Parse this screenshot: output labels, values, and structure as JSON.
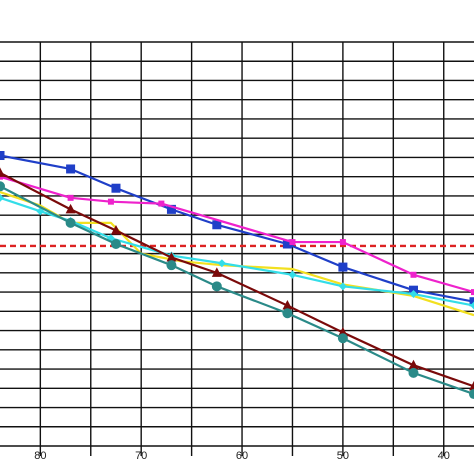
{
  "chart_data": {
    "type": "line",
    "title": "",
    "xlabel": "",
    "ylabel": "",
    "x_reversed": true,
    "xlim": [
      84,
      37
    ],
    "ylim": [
      0,
      21
    ],
    "x_ticks": [
      "80",
      "70",
      "60",
      "50",
      "40"
    ],
    "x_tick_values": [
      80,
      70,
      60,
      50,
      40
    ],
    "grid": true,
    "reference_line": {
      "y": 10.4,
      "color": "#dd2222",
      "style": "dashed"
    },
    "series": [
      {
        "color": "#1f3fc8",
        "marker": "square",
        "x": [
          84,
          77,
          72.5,
          67,
          62.5,
          55.5,
          50,
          43,
          37
        ],
        "y": [
          15.1,
          14.4,
          13.4,
          12.3,
          11.5,
          10.5,
          9.3,
          8.1,
          7.5
        ]
      },
      {
        "color": "#ee22cc",
        "marker": "square-small",
        "x": [
          84,
          77,
          73,
          68,
          55,
          50,
          43,
          37
        ],
        "y": [
          14.0,
          12.9,
          12.7,
          12.6,
          10.6,
          10.6,
          8.9,
          8.0
        ]
      },
      {
        "color": "#f2e020",
        "marker": "none",
        "x": [
          84,
          80,
          77,
          73,
          70,
          66,
          62,
          55,
          50,
          43,
          37
        ],
        "y": [
          13.2,
          12.5,
          11.6,
          11.6,
          10.0,
          9.6,
          9.4,
          9.2,
          8.4,
          7.8,
          6.8
        ]
      },
      {
        "color": "#33dde8",
        "marker": "diamond",
        "x": [
          84,
          80,
          77,
          73,
          67,
          62,
          55,
          50,
          43,
          37
        ],
        "y": [
          12.9,
          12.2,
          11.7,
          10.8,
          9.9,
          9.5,
          8.9,
          8.3,
          7.9,
          7.3
        ]
      },
      {
        "color": "#7a0a0a",
        "marker": "triangle",
        "x": [
          84,
          77,
          72.5,
          67,
          62.5,
          55.5,
          50,
          43,
          37
        ],
        "y": [
          14.2,
          12.3,
          11.2,
          9.8,
          9.0,
          7.3,
          5.9,
          4.2,
          3.1
        ]
      },
      {
        "color": "#2a8a88",
        "marker": "circle",
        "x": [
          84,
          77,
          72.5,
          67,
          62.5,
          55.5,
          50,
          43,
          37
        ],
        "y": [
          13.5,
          11.6,
          10.5,
          9.4,
          8.3,
          6.9,
          5.6,
          3.8,
          2.7
        ]
      }
    ]
  }
}
